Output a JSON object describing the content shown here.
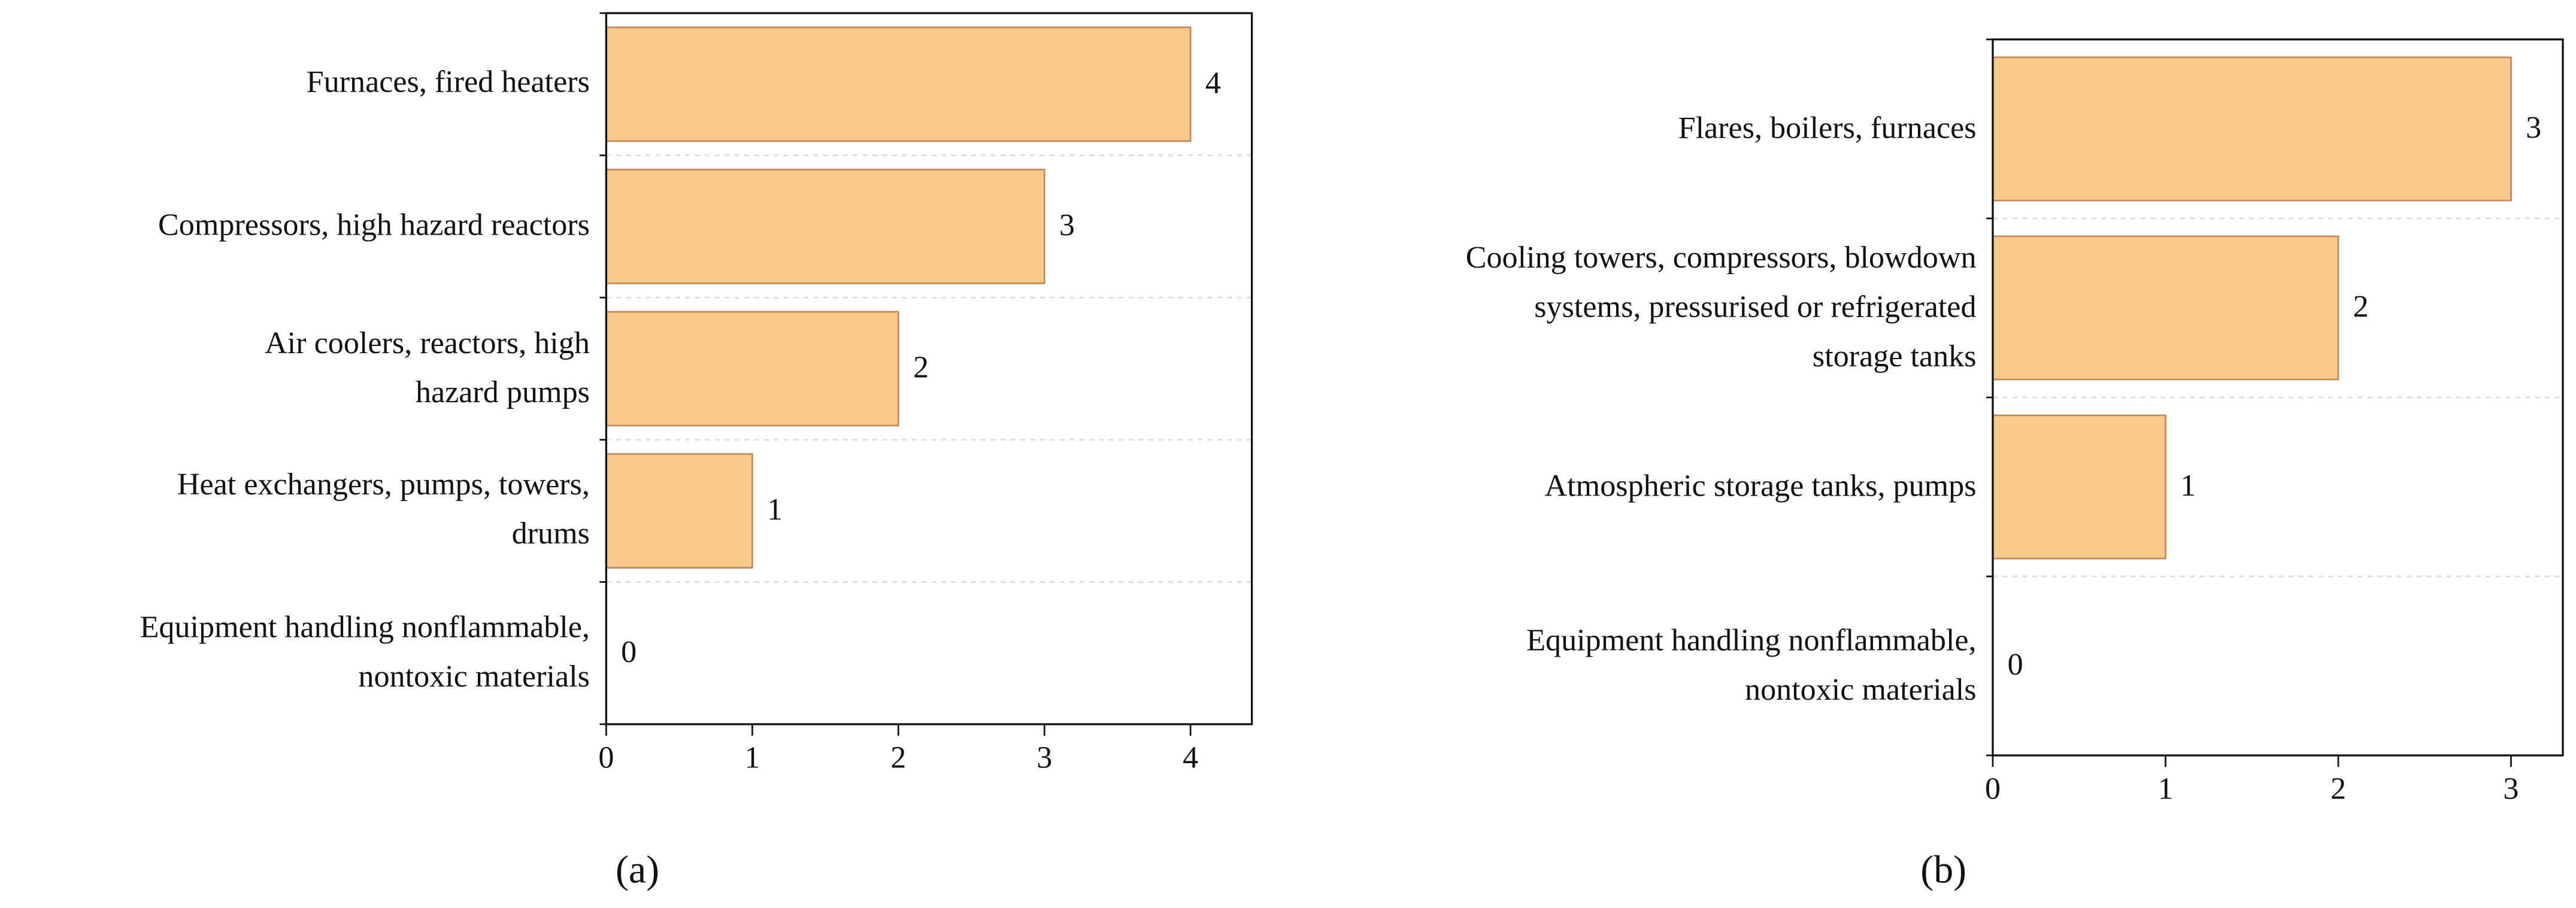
{
  "chart_data": [
    {
      "type": "barh",
      "caption": "(a)",
      "categories": [
        "Furnaces, fired heaters",
        "Compressors, high hazard reactors",
        "Air coolers, reactors, high\nhazard pumps",
        "Heat exchangers, pumps, towers,\ndrums",
        "Equipment handling nonflammable,\nnontoxic materials"
      ],
      "values": [
        4,
        3,
        2,
        1,
        0
      ],
      "color": "#fdc98a",
      "xlim": [
        0,
        4.42
      ],
      "xticks": [
        0,
        1,
        2,
        3,
        4
      ],
      "grid": true
    },
    {
      "type": "barh",
      "caption": "(b)",
      "categories": [
        "Flares, boilers, furnaces",
        "Cooling towers, compressors, blowdown\nsystems, pressurised or refrigerated\nstorage tanks",
        "Atmospheric storage tanks, pumps",
        "Equipment handling nonflammable,\nnontoxic materials"
      ],
      "values": [
        3,
        2,
        1,
        0
      ],
      "color": "#fdc98a",
      "xlim": [
        0,
        3.3
      ],
      "xticks": [
        0,
        1,
        2,
        3
      ],
      "grid": true
    }
  ]
}
